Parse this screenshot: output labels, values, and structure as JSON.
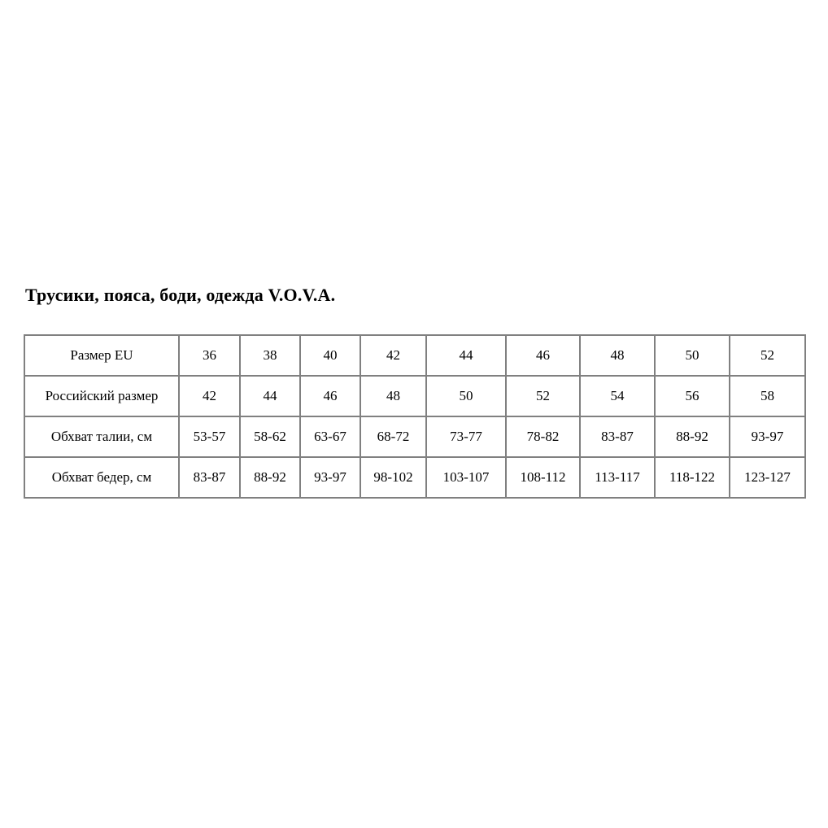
{
  "title": "Трусики, пояса, боди, одежда V.O.V.A.",
  "size_table": {
    "border_color": "#808080",
    "rows": [
      {
        "label": "Размер EU",
        "values": [
          "36",
          "38",
          "40",
          "42",
          "44",
          "46",
          "48",
          "50",
          "52"
        ]
      },
      {
        "label": "Российский размер",
        "values": [
          "42",
          "44",
          "46",
          "48",
          "50",
          "52",
          "54",
          "56",
          "58"
        ]
      },
      {
        "label": "Обхват талии, см",
        "values": [
          "53-57",
          "58-62",
          "63-67",
          "68-72",
          "73-77",
          "78-82",
          "83-87",
          "88-92",
          "93-97"
        ]
      },
      {
        "label": "Обхват бедер, см",
        "values": [
          "83-87",
          "88-92",
          "93-97",
          "98-102",
          "103-107",
          "108-112",
          "113-117",
          "118-122",
          "123-127"
        ]
      }
    ]
  }
}
